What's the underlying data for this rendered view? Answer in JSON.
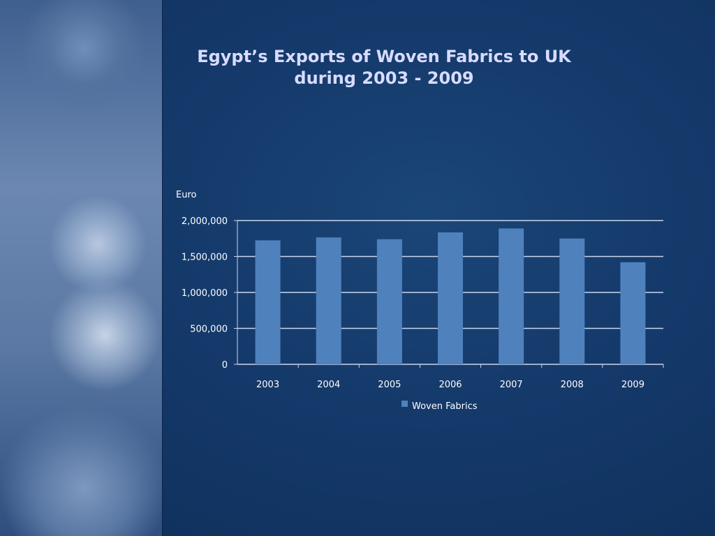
{
  "chart_data": {
    "type": "bar",
    "title": "Egypt’s Exports of Woven Fabrics to UK during 2003 - 2009",
    "title_lines": [
      "Egypt’s Exports of Woven Fabrics to UK",
      "during 2003 - 2009"
    ],
    "ylabel": "Euro",
    "xlabel": "",
    "categories": [
      "2003",
      "2004",
      "2005",
      "2006",
      "2007",
      "2008",
      "2009"
    ],
    "series": [
      {
        "name": "Woven Fabrics",
        "values": [
          1725000,
          1765000,
          1740000,
          1835000,
          1890000,
          1750000,
          1420000
        ],
        "color": "#4f81bd"
      }
    ],
    "ylim": [
      0,
      2000000
    ],
    "yticks": [
      "0",
      "500,000",
      "1,000,000",
      "1,500,000",
      "2,000,000"
    ],
    "grid": true,
    "legend": "bottom"
  }
}
